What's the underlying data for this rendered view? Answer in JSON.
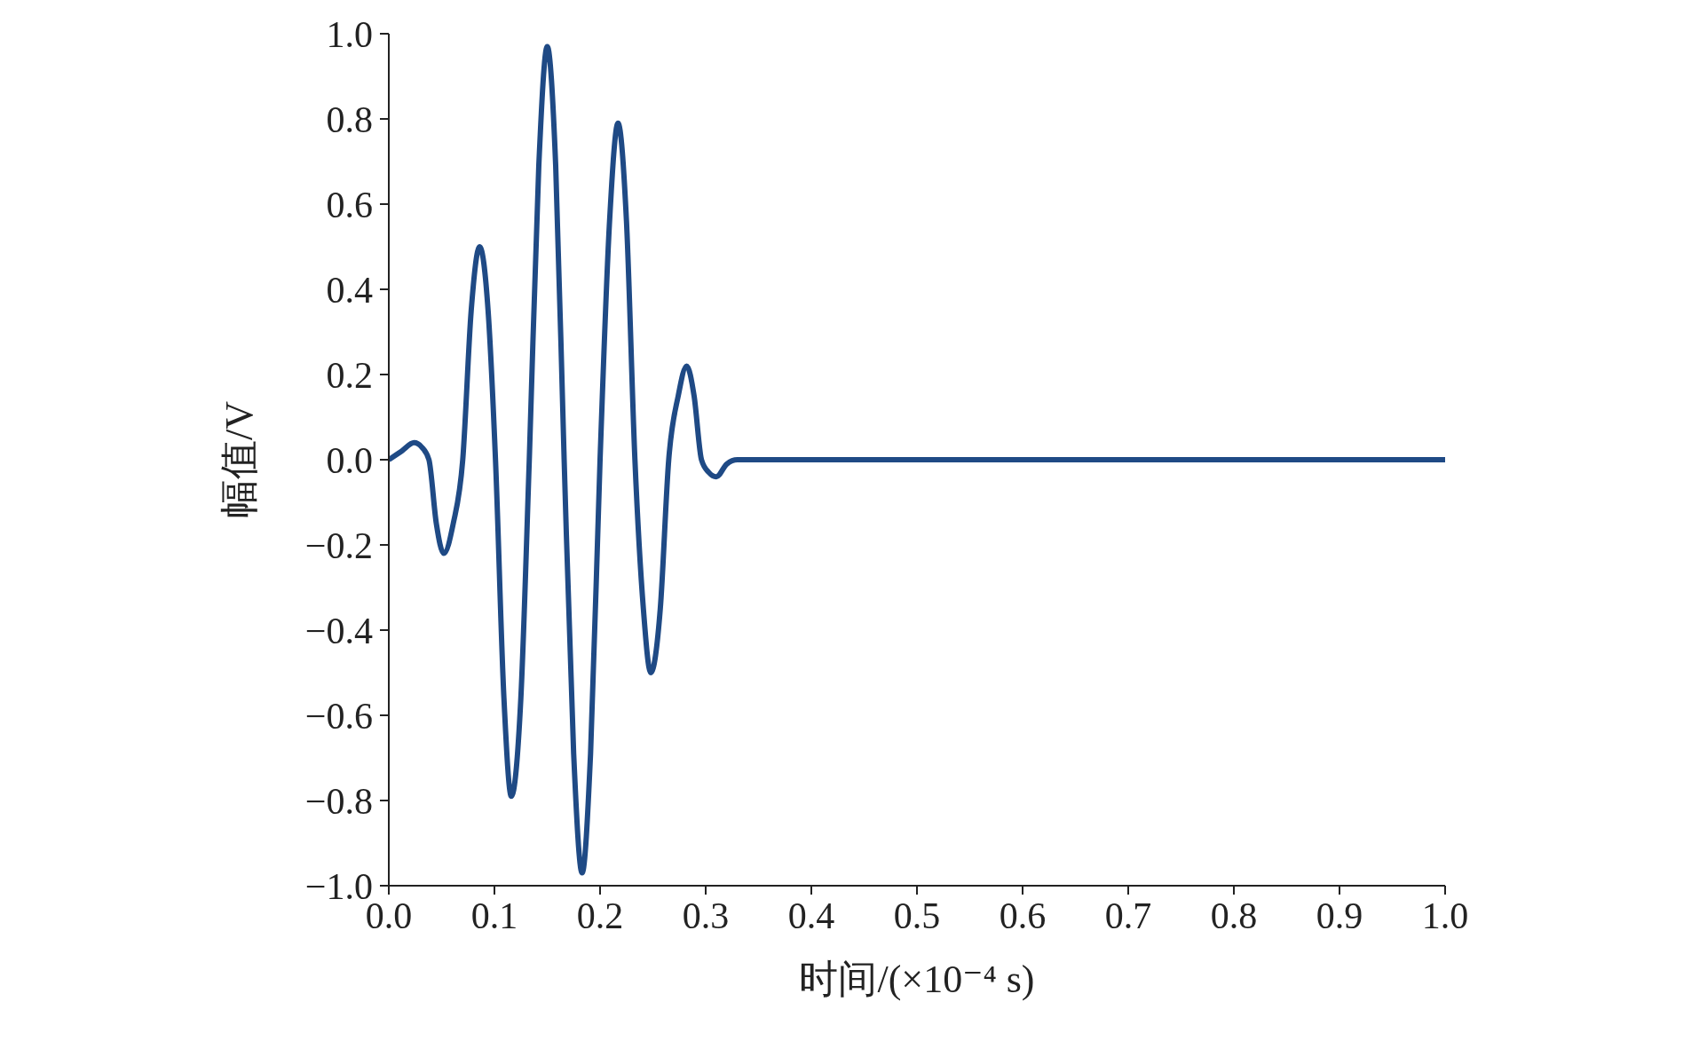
{
  "chart_data": {
    "type": "line",
    "xlabel": "时间/(×10⁻⁴ s)",
    "ylabel": "幅值/V",
    "x": [
      0,
      0.012,
      0.024,
      0.031,
      0.038,
      0.045,
      0.052,
      0.061,
      0.07,
      0.078,
      0.086,
      0.094,
      0.101,
      0.109,
      0.116,
      0.125,
      0.133,
      0.142,
      0.15,
      0.158,
      0.166,
      0.175,
      0.183,
      0.191,
      0.2,
      0.209,
      0.217,
      0.225,
      0.233,
      0.241,
      0.248,
      0.257,
      0.265,
      0.274,
      0.282,
      0.289,
      0.296,
      0.303,
      0.31,
      0.32,
      0.33,
      1.0
    ],
    "series": [
      {
        "color": "#1f4a85",
        "values": [
          0,
          0.02,
          0.04,
          0.03,
          0,
          -0.15,
          -0.22,
          -0.15,
          0,
          0.35,
          0.5,
          0.35,
          0,
          -0.56,
          -0.79,
          -0.56,
          0,
          0.69,
          0.97,
          0.69,
          0,
          -0.69,
          -0.97,
          -0.69,
          0,
          0.56,
          0.79,
          0.56,
          0,
          -0.35,
          -0.5,
          -0.35,
          0,
          0.15,
          0.22,
          0.15,
          0,
          -0.03,
          -0.04,
          -0.01,
          0,
          0
        ]
      }
    ],
    "xlim": [
      0,
      1
    ],
    "ylim": [
      -1,
      1
    ],
    "xticks": [
      {
        "value": 0,
        "label": "0.0"
      },
      {
        "value": 0.1,
        "label": "0.1"
      },
      {
        "value": 0.2,
        "label": "0.2"
      },
      {
        "value": 0.3,
        "label": "0.3"
      },
      {
        "value": 0.4,
        "label": "0.4"
      },
      {
        "value": 0.5,
        "label": "0.5"
      },
      {
        "value": 0.6,
        "label": "0.6"
      },
      {
        "value": 0.7,
        "label": "0.7"
      },
      {
        "value": 0.8,
        "label": "0.8"
      },
      {
        "value": 0.9,
        "label": "0.9"
      },
      {
        "value": 1,
        "label": "1.0"
      }
    ],
    "yticks": [
      {
        "value": -1,
        "label": "−1.0"
      },
      {
        "value": -0.8,
        "label": "−0.8"
      },
      {
        "value": -0.6,
        "label": "−0.6"
      },
      {
        "value": -0.4,
        "label": "−0.4"
      },
      {
        "value": -0.2,
        "label": "−0.2"
      },
      {
        "value": 0,
        "label": "0.0"
      },
      {
        "value": 0.2,
        "label": "0.2"
      },
      {
        "value": 0.4,
        "label": "0.4"
      },
      {
        "value": 0.6,
        "label": "0.6"
      },
      {
        "value": 0.8,
        "label": "0.8"
      },
      {
        "value": 1,
        "label": "1.0"
      }
    ],
    "grid": false,
    "legend": false,
    "marker": "none",
    "line_style": "solid"
  }
}
